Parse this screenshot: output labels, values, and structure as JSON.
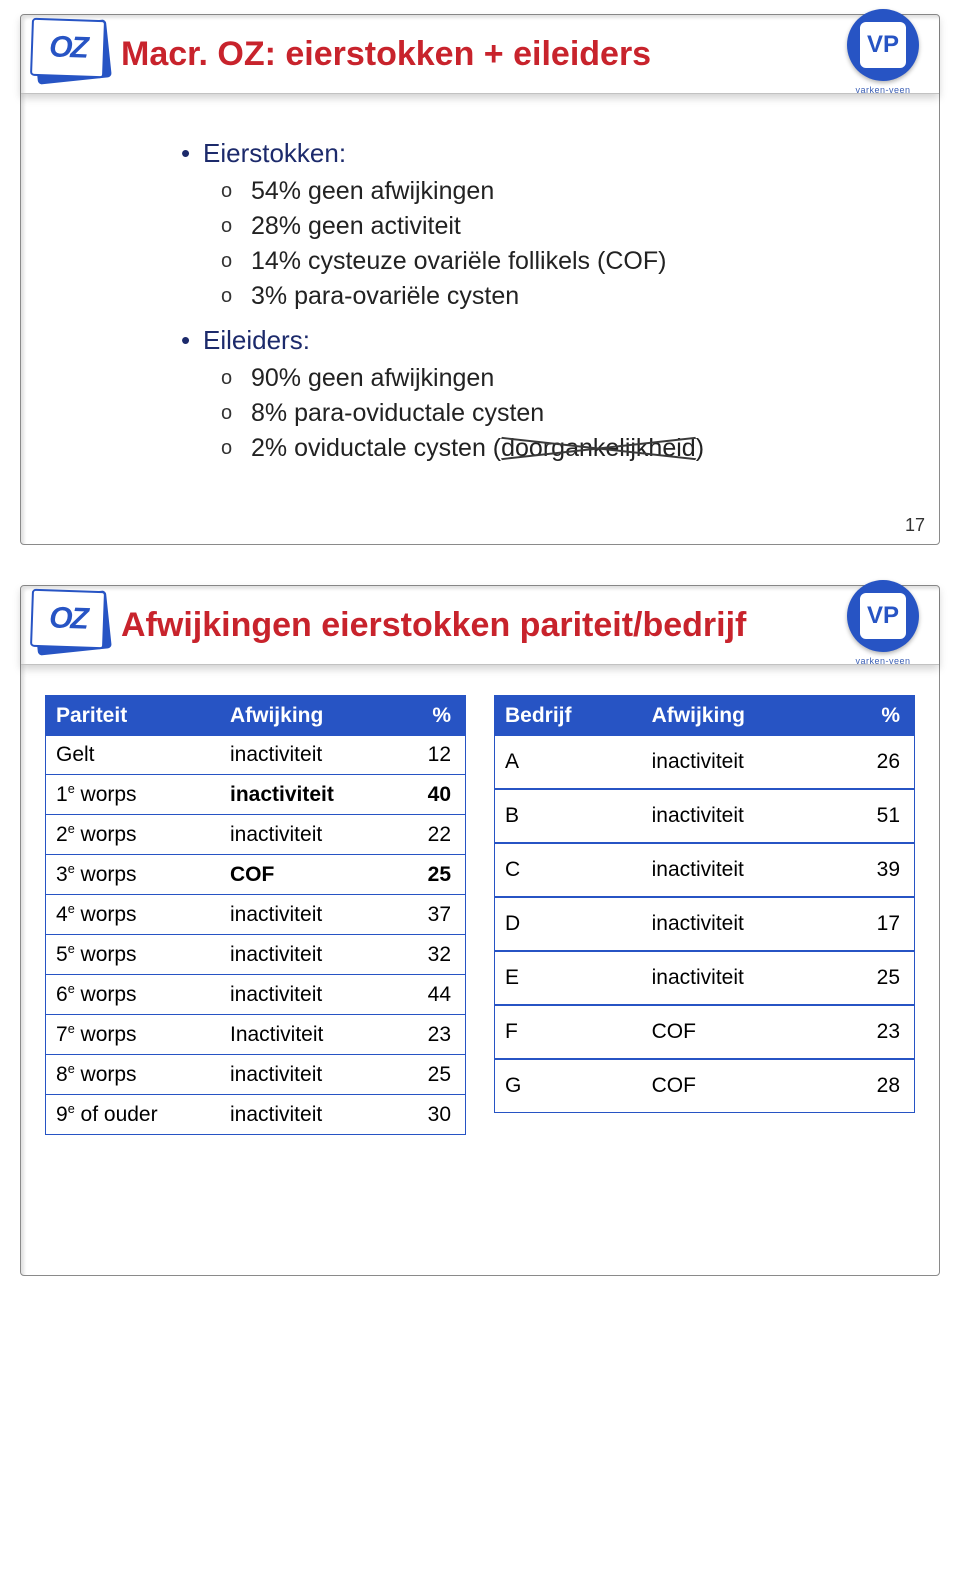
{
  "brand": {
    "oz_letters": "OZ",
    "vp_letters": "VP",
    "vp_caption": "varken-veen"
  },
  "colors": {
    "accent": "#2754c4",
    "title_red": "#c8232c",
    "text_navy": "#1c2a6b",
    "cross_out": "#3a3a3a"
  },
  "slide1": {
    "title": "Macr. OZ: eierstokken + eileiders",
    "title_color": "#c8232c",
    "number": "17",
    "sections": [
      {
        "heading": "Eierstokken:",
        "items": [
          "54% geen afwijkingen",
          "28% geen activiteit",
          "14% cysteuze ovariële follikels (COF)",
          "3% para-ovariële cysten"
        ]
      },
      {
        "heading": "Eileiders:",
        "items": [
          "90% geen afwijkingen",
          "8% para-oviductale cysten",
          {
            "text": "2% oviductale cysten (doorgankelijkheid)",
            "cross_out_word": "(doorgankelijkheid)"
          }
        ]
      }
    ]
  },
  "slide2": {
    "title": "Afwijkingen eierstokken pariteit/bedrijf",
    "title_color": "#c8232c",
    "table_left": {
      "header_bg": "#2754c4",
      "header_fg": "#ffffff",
      "border_color": "#2754c4",
      "columns": [
        "Pariteit",
        "Afwijking",
        "%"
      ],
      "rows": [
        {
          "pariteit": "Gelt",
          "afwijking": "inactiviteit",
          "pct": 12
        },
        {
          "pariteit_html": "1<sup>e</sup> worps",
          "afwijking": "inactiviteit",
          "pct": 40,
          "highlight": true
        },
        {
          "pariteit_html": "2<sup>e</sup> worps",
          "afwijking": "inactiviteit",
          "pct": 22
        },
        {
          "pariteit_html": "3<sup>e</sup> worps",
          "afwijking": "COF",
          "pct": 25,
          "highlight": true
        },
        {
          "pariteit_html": "4<sup>e</sup> worps",
          "afwijking": "inactiviteit",
          "pct": 37
        },
        {
          "pariteit_html": "5<sup>e</sup> worps",
          "afwijking": "inactiviteit",
          "pct": 32
        },
        {
          "pariteit_html": "6<sup>e</sup> worps",
          "afwijking": "inactiviteit",
          "pct": 44
        },
        {
          "pariteit_html": "7<sup>e</sup> worps",
          "afwijking": "Inactiviteit",
          "pct": 23
        },
        {
          "pariteit_html": "8<sup>e</sup> worps",
          "afwijking": "inactiviteit",
          "pct": 25
        },
        {
          "pariteit_html": "9<sup>e</sup> of ouder",
          "afwijking": "inactiviteit",
          "pct": 30
        }
      ]
    },
    "table_right": {
      "header_bg": "#2754c4",
      "header_fg": "#ffffff",
      "border_color": "#2754c4",
      "columns": [
        "Bedrijf",
        "Afwijking",
        "%"
      ],
      "rows": [
        {
          "bedrijf": "A",
          "afwijking": "inactiviteit",
          "pct": 26
        },
        {
          "bedrijf": "B",
          "afwijking": "inactiviteit",
          "pct": 51
        },
        {
          "bedrijf": "C",
          "afwijking": "inactiviteit",
          "pct": 39
        },
        {
          "bedrijf": "D",
          "afwijking": "inactiviteit",
          "pct": 17
        },
        {
          "bedrijf": "E",
          "afwijking": "inactiviteit",
          "pct": 25
        },
        {
          "bedrijf": "F",
          "afwijking": "COF",
          "pct": 23
        },
        {
          "bedrijf": "G",
          "afwijking": "COF",
          "pct": 28
        }
      ]
    }
  }
}
